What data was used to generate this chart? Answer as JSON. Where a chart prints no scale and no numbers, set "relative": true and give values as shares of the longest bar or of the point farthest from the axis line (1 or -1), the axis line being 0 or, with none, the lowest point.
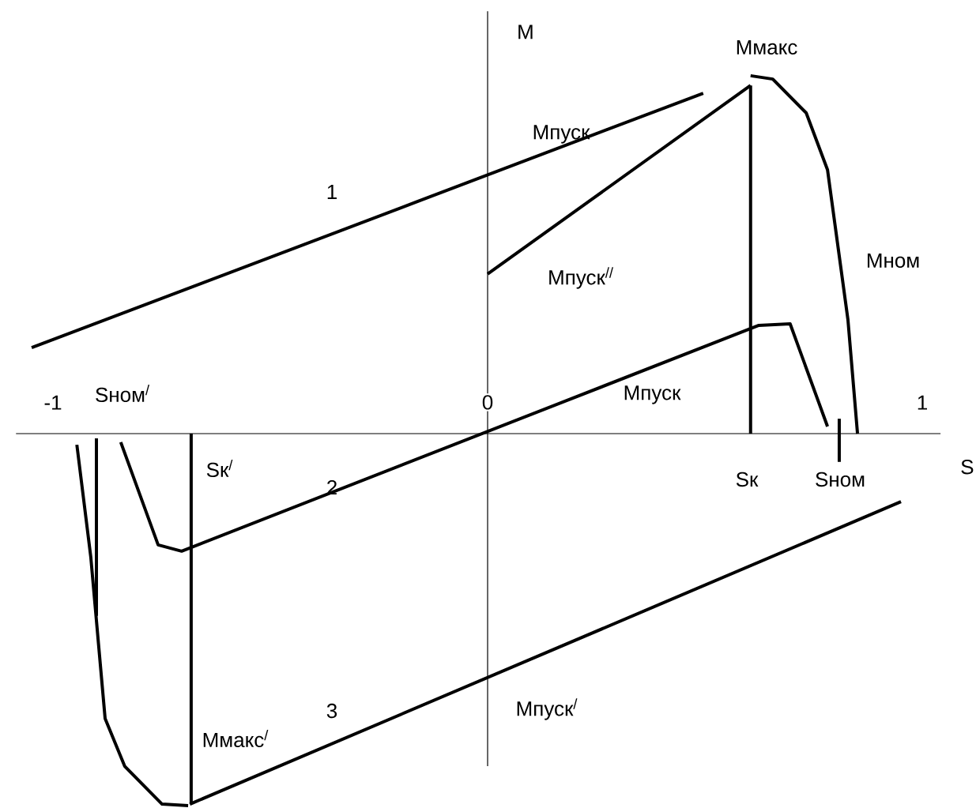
{
  "chart_data": {
    "type": "line",
    "relative": true,
    "xlabel": "S",
    "ylabel": "М",
    "xlim": [
      -1.085,
      1.042
    ],
    "xticks": [
      -1,
      0,
      1
    ],
    "series": [
      {
        "color": "#000000",
        "x": [
          0,
          0.605
        ],
        "values": [
          0.429,
          0.936
        ]
      },
      {
        "color": "#000000",
        "x": [
          0.605,
          0.656,
          0.733,
          0.782,
          0.829,
          0.851
        ],
        "values": [
          0.962,
          0.953,
          0.862,
          0.709,
          0.306,
          0
        ]
      },
      {
        "color": "#000000",
        "x": [
          -0.844,
          -0.758,
          -0.704,
          0.624,
          0.696,
          0.782
        ],
        "values": [
          -0.023,
          -0.299,
          -0.316,
          0.291,
          0.295,
          0.019
        ]
      },
      {
        "color": "#000000",
        "x": [
          -0.945,
          -0.913,
          -0.88,
          -0.835,
          -0.749,
          -0.689
        ],
        "values": [
          -0.03,
          -0.331,
          -0.766,
          -0.894,
          -0.996,
          -1
        ]
      },
      {
        "color": "#000000",
        "x": [
          -1.049,
          0.496
        ],
        "values": [
          0.231,
          0.915
        ]
      },
      {
        "color": "#000000",
        "x": [
          -0.685,
          0.951
        ],
        "values": [
          -0.996,
          -0.183
        ]
      },
      {
        "color": "#000000",
        "x": [
          0.605,
          0.605
        ],
        "values": [
          0.936,
          0
        ]
      },
      {
        "color": "#000000",
        "x": [
          0.809,
          0.809
        ],
        "values": [
          0.04,
          -0.076
        ]
      },
      {
        "color": "#000000",
        "x": [
          -0.9,
          -0.9
        ],
        "values": [
          -0.013,
          -0.49
        ]
      },
      {
        "color": "#000000",
        "x": [
          -0.682,
          -0.682
        ],
        "values": [
          0,
          -0.996
        ]
      }
    ],
    "annotations": [
      "Ммакс",
      "Мпуск",
      "1",
      "Мпуск$^{//}$",
      "Мном",
      "Sном$^{/}$",
      "Мпуск",
      "Sк$^{/}$",
      "2",
      "Sк",
      "Sном",
      "3",
      "Ммакс$^{/}$",
      "Мпуск$^{/}$"
    ]
  }
}
